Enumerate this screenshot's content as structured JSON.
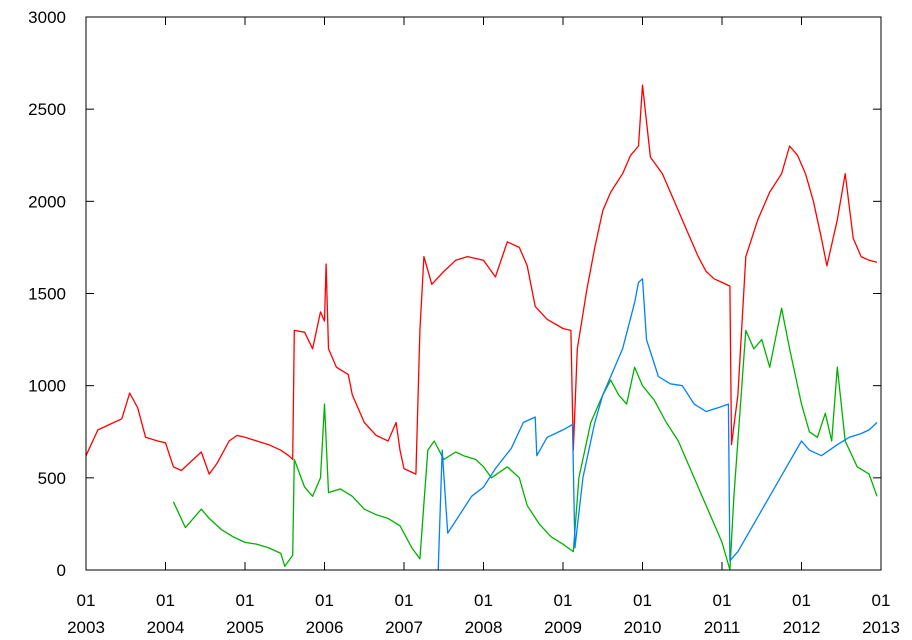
{
  "chart_data": {
    "type": "line",
    "title": "",
    "xlabel": "",
    "ylabel": "",
    "xlim": [
      2003.0,
      2013.0
    ],
    "ylim": [
      0,
      3000
    ],
    "grid": false,
    "legend": "none",
    "y_ticks": [
      {
        "value": 0,
        "label": "0"
      },
      {
        "value": 500,
        "label": "500"
      },
      {
        "value": 1000,
        "label": "1000"
      },
      {
        "value": 1500,
        "label": "1500"
      },
      {
        "value": 2000,
        "label": "2000"
      },
      {
        "value": 2500,
        "label": "2500"
      },
      {
        "value": 3000,
        "label": "3000"
      }
    ],
    "x_ticks": [
      {
        "value": 2003,
        "line1": "01",
        "line2": "2003"
      },
      {
        "value": 2004,
        "line1": "01",
        "line2": "2004"
      },
      {
        "value": 2005,
        "line1": "01",
        "line2": "2005"
      },
      {
        "value": 2006,
        "line1": "01",
        "line2": "2006"
      },
      {
        "value": 2007,
        "line1": "01",
        "line2": "2007"
      },
      {
        "value": 2008,
        "line1": "01",
        "line2": "2008"
      },
      {
        "value": 2009,
        "line1": "01",
        "line2": "2009"
      },
      {
        "value": 2010,
        "line1": "01",
        "line2": "2010"
      },
      {
        "value": 2011,
        "line1": "01",
        "line2": "2011"
      },
      {
        "value": 2012,
        "line1": "01",
        "line2": "2012"
      },
      {
        "value": 2013,
        "line1": "01",
        "line2": "2013"
      }
    ],
    "series": [
      {
        "color": "#ff0000",
        "points": [
          [
            2003.0,
            620
          ],
          [
            2003.15,
            760
          ],
          [
            2003.3,
            790
          ],
          [
            2003.45,
            820
          ],
          [
            2003.55,
            960
          ],
          [
            2003.65,
            880
          ],
          [
            2003.75,
            720
          ],
          [
            2003.9,
            700
          ],
          [
            2004.0,
            690
          ],
          [
            2004.1,
            560
          ],
          [
            2004.2,
            540
          ],
          [
            2004.35,
            600
          ],
          [
            2004.45,
            640
          ],
          [
            2004.55,
            520
          ],
          [
            2004.65,
            580
          ],
          [
            2004.8,
            700
          ],
          [
            2004.9,
            730
          ],
          [
            2005.0,
            720
          ],
          [
            2005.15,
            700
          ],
          [
            2005.3,
            680
          ],
          [
            2005.45,
            650
          ],
          [
            2005.55,
            620
          ],
          [
            2005.6,
            600
          ],
          [
            2005.62,
            1300
          ],
          [
            2005.75,
            1290
          ],
          [
            2005.85,
            1200
          ],
          [
            2005.95,
            1400
          ],
          [
            2006.0,
            1350
          ],
          [
            2006.02,
            1660
          ],
          [
            2006.05,
            1200
          ],
          [
            2006.15,
            1100
          ],
          [
            2006.3,
            1060
          ],
          [
            2006.35,
            950
          ],
          [
            2006.5,
            800
          ],
          [
            2006.65,
            730
          ],
          [
            2006.8,
            700
          ],
          [
            2006.9,
            800
          ],
          [
            2006.95,
            650
          ],
          [
            2007.0,
            550
          ],
          [
            2007.15,
            520
          ],
          [
            2007.2,
            1300
          ],
          [
            2007.25,
            1700
          ],
          [
            2007.35,
            1550
          ],
          [
            2007.5,
            1620
          ],
          [
            2007.65,
            1680
          ],
          [
            2007.8,
            1700
          ],
          [
            2008.0,
            1680
          ],
          [
            2008.15,
            1590
          ],
          [
            2008.3,
            1780
          ],
          [
            2008.45,
            1750
          ],
          [
            2008.55,
            1650
          ],
          [
            2008.65,
            1430
          ],
          [
            2008.8,
            1360
          ],
          [
            2009.0,
            1310
          ],
          [
            2009.1,
            1300
          ],
          [
            2009.13,
            650
          ],
          [
            2009.18,
            1200
          ],
          [
            2009.3,
            1520
          ],
          [
            2009.4,
            1750
          ],
          [
            2009.5,
            1950
          ],
          [
            2009.6,
            2050
          ],
          [
            2009.75,
            2150
          ],
          [
            2009.85,
            2250
          ],
          [
            2009.95,
            2300
          ],
          [
            2010.0,
            2630
          ],
          [
            2010.1,
            2240
          ],
          [
            2010.25,
            2150
          ],
          [
            2010.4,
            2000
          ],
          [
            2010.55,
            1850
          ],
          [
            2010.7,
            1700
          ],
          [
            2010.8,
            1620
          ],
          [
            2010.9,
            1580
          ],
          [
            2011.0,
            1560
          ],
          [
            2011.1,
            1540
          ],
          [
            2011.12,
            680
          ],
          [
            2011.2,
            950
          ],
          [
            2011.3,
            1700
          ],
          [
            2011.45,
            1900
          ],
          [
            2011.6,
            2050
          ],
          [
            2011.75,
            2150
          ],
          [
            2011.85,
            2300
          ],
          [
            2011.95,
            2250
          ],
          [
            2012.05,
            2150
          ],
          [
            2012.15,
            2000
          ],
          [
            2012.25,
            1800
          ],
          [
            2012.32,
            1650
          ],
          [
            2012.45,
            1900
          ],
          [
            2012.55,
            2150
          ],
          [
            2012.65,
            1800
          ],
          [
            2012.75,
            1700
          ],
          [
            2012.85,
            1680
          ],
          [
            2012.95,
            1670
          ]
        ]
      },
      {
        "color": "#00b200",
        "points": [
          [
            2004.1,
            370
          ],
          [
            2004.25,
            230
          ],
          [
            2004.35,
            280
          ],
          [
            2004.45,
            330
          ],
          [
            2004.55,
            280
          ],
          [
            2004.7,
            220
          ],
          [
            2004.85,
            180
          ],
          [
            2005.0,
            150
          ],
          [
            2005.15,
            140
          ],
          [
            2005.3,
            120
          ],
          [
            2005.45,
            90
          ],
          [
            2005.5,
            20
          ],
          [
            2005.6,
            80
          ],
          [
            2005.62,
            600
          ],
          [
            2005.75,
            450
          ],
          [
            2005.85,
            400
          ],
          [
            2005.95,
            500
          ],
          [
            2006.0,
            900
          ],
          [
            2006.05,
            420
          ],
          [
            2006.2,
            440
          ],
          [
            2006.35,
            400
          ],
          [
            2006.5,
            330
          ],
          [
            2006.65,
            300
          ],
          [
            2006.8,
            280
          ],
          [
            2006.95,
            240
          ],
          [
            2007.1,
            120
          ],
          [
            2007.2,
            60
          ],
          [
            2007.3,
            650
          ],
          [
            2007.38,
            700
          ],
          [
            2007.5,
            600
          ],
          [
            2007.65,
            640
          ],
          [
            2007.75,
            620
          ],
          [
            2007.9,
            600
          ],
          [
            2008.0,
            560
          ],
          [
            2008.1,
            500
          ],
          [
            2008.3,
            560
          ],
          [
            2008.45,
            500
          ],
          [
            2008.55,
            350
          ],
          [
            2008.7,
            250
          ],
          [
            2008.85,
            180
          ],
          [
            2009.0,
            140
          ],
          [
            2009.13,
            100
          ],
          [
            2009.2,
            500
          ],
          [
            2009.35,
            800
          ],
          [
            2009.5,
            950
          ],
          [
            2009.6,
            1030
          ],
          [
            2009.7,
            950
          ],
          [
            2009.8,
            900
          ],
          [
            2009.9,
            1100
          ],
          [
            2010.0,
            1000
          ],
          [
            2010.15,
            920
          ],
          [
            2010.3,
            800
          ],
          [
            2010.45,
            700
          ],
          [
            2010.6,
            550
          ],
          [
            2010.75,
            400
          ],
          [
            2010.9,
            250
          ],
          [
            2011.0,
            150
          ],
          [
            2011.08,
            30
          ],
          [
            2011.1,
            0
          ],
          [
            2011.15,
            400
          ],
          [
            2011.3,
            1300
          ],
          [
            2011.4,
            1200
          ],
          [
            2011.5,
            1250
          ],
          [
            2011.6,
            1100
          ],
          [
            2011.75,
            1420
          ],
          [
            2011.85,
            1200
          ],
          [
            2012.0,
            900
          ],
          [
            2012.1,
            750
          ],
          [
            2012.2,
            720
          ],
          [
            2012.3,
            850
          ],
          [
            2012.38,
            700
          ],
          [
            2012.45,
            1100
          ],
          [
            2012.55,
            700
          ],
          [
            2012.7,
            560
          ],
          [
            2012.85,
            520
          ],
          [
            2012.95,
            400
          ]
        ]
      },
      {
        "color": "#0080ff",
        "points": [
          [
            2007.43,
            0
          ],
          [
            2007.48,
            650
          ],
          [
            2007.55,
            200
          ],
          [
            2007.7,
            300
          ],
          [
            2007.85,
            400
          ],
          [
            2008.0,
            450
          ],
          [
            2008.15,
            550
          ],
          [
            2008.35,
            660
          ],
          [
            2008.5,
            800
          ],
          [
            2008.65,
            830
          ],
          [
            2008.67,
            620
          ],
          [
            2008.8,
            720
          ],
          [
            2009.0,
            760
          ],
          [
            2009.12,
            790
          ],
          [
            2009.15,
            120
          ],
          [
            2009.25,
            500
          ],
          [
            2009.4,
            800
          ],
          [
            2009.5,
            950
          ],
          [
            2009.6,
            1050
          ],
          [
            2009.75,
            1200
          ],
          [
            2009.9,
            1450
          ],
          [
            2009.95,
            1560
          ],
          [
            2010.0,
            1580
          ],
          [
            2010.05,
            1250
          ],
          [
            2010.2,
            1050
          ],
          [
            2010.35,
            1010
          ],
          [
            2010.5,
            1000
          ],
          [
            2010.65,
            900
          ],
          [
            2010.8,
            860
          ],
          [
            2010.95,
            880
          ],
          [
            2011.08,
            900
          ],
          [
            2011.1,
            50
          ],
          [
            2011.2,
            100
          ],
          [
            2011.4,
            250
          ],
          [
            2011.6,
            400
          ],
          [
            2011.8,
            550
          ],
          [
            2012.0,
            700
          ],
          [
            2012.1,
            650
          ],
          [
            2012.25,
            620
          ],
          [
            2012.45,
            680
          ],
          [
            2012.6,
            720
          ],
          [
            2012.75,
            740
          ],
          [
            2012.85,
            760
          ],
          [
            2012.95,
            800
          ]
        ]
      }
    ]
  }
}
